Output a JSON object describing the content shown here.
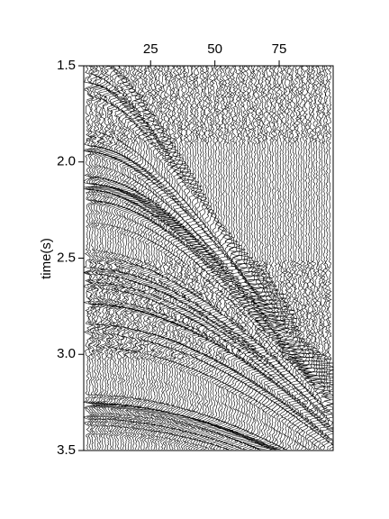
{
  "chart_data": {
    "type": "wiggle",
    "ylabel": "time(s)",
    "xlim": [
      -1,
      96
    ],
    "xticks": [
      25,
      50,
      75
    ],
    "ylim": [
      3.5,
      1.5
    ],
    "yticks": [
      1.5,
      {
        "value": 2.0,
        "label": "2.0"
      },
      2.5,
      {
        "value": 3.0,
        "label": "3.0"
      },
      3.5
    ]
  }
}
